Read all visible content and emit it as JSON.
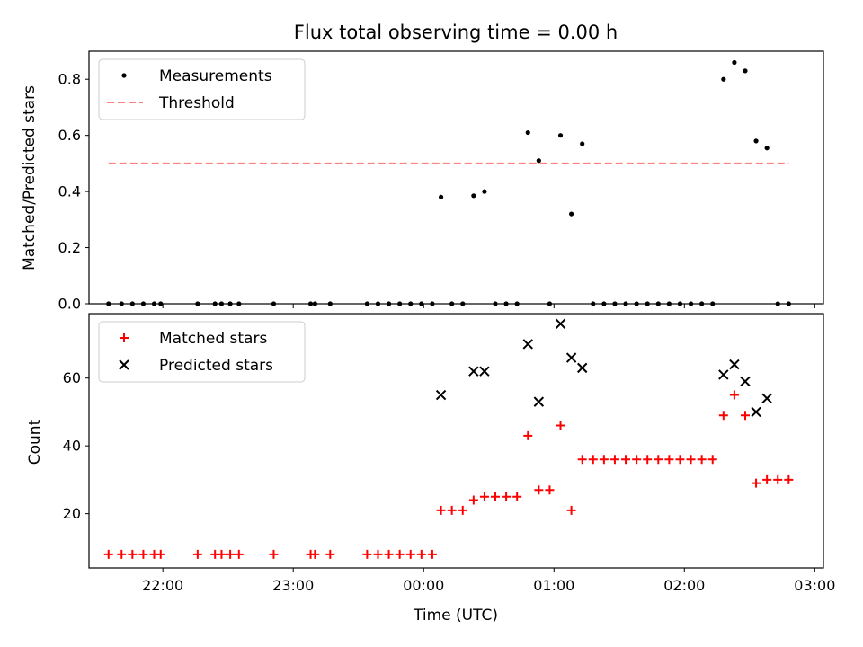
{
  "chart_data": [
    {
      "type": "scatter",
      "title": "Flux total observing time = 0.00 h",
      "xlabel": "",
      "ylabel": "Matched/Predicted stars",
      "xlim": [
        "21:26",
        "03:04"
      ],
      "ylim": [
        0,
        0.9
      ],
      "yticks": [
        "0.0",
        "0.2",
        "0.4",
        "0.6",
        "0.8"
      ],
      "grid": false,
      "legend_position": "top-left",
      "series": [
        {
          "name": "Measurements",
          "marker": "dot",
          "color": "#000000",
          "points": [
            [
              "21:35",
              0
            ],
            [
              "21:41",
              0
            ],
            [
              "21:46",
              0
            ],
            [
              "21:51",
              0
            ],
            [
              "21:56",
              0
            ],
            [
              "21:59",
              0
            ],
            [
              "22:16",
              0
            ],
            [
              "22:24",
              0
            ],
            [
              "22:27",
              0
            ],
            [
              "22:31",
              0
            ],
            [
              "22:35",
              0
            ],
            [
              "22:51",
              0
            ],
            [
              "23:08",
              0
            ],
            [
              "23:10",
              0
            ],
            [
              "23:17",
              0
            ],
            [
              "23:34",
              0
            ],
            [
              "23:39",
              0
            ],
            [
              "23:44",
              0
            ],
            [
              "23:49",
              0
            ],
            [
              "23:54",
              0
            ],
            [
              "23:59",
              0
            ],
            [
              "00:04",
              0
            ],
            [
              "00:08",
              0.38
            ],
            [
              "00:13",
              0
            ],
            [
              "00:18",
              0
            ],
            [
              "00:23",
              0.385
            ],
            [
              "00:28",
              0.4
            ],
            [
              "00:33",
              0
            ],
            [
              "00:38",
              0
            ],
            [
              "00:43",
              0
            ],
            [
              "00:48",
              0.61
            ],
            [
              "00:53",
              0.51
            ],
            [
              "00:58",
              0
            ],
            [
              "01:03",
              0.6
            ],
            [
              "01:08",
              0.32
            ],
            [
              "01:13",
              0.57
            ],
            [
              "01:18",
              0
            ],
            [
              "01:23",
              0
            ],
            [
              "01:28",
              0
            ],
            [
              "01:33",
              0
            ],
            [
              "01:38",
              0
            ],
            [
              "01:43",
              0
            ],
            [
              "01:48",
              0
            ],
            [
              "01:53",
              0
            ],
            [
              "01:58",
              0
            ],
            [
              "02:03",
              0
            ],
            [
              "02:08",
              0
            ],
            [
              "02:13",
              0
            ],
            [
              "02:18",
              0.8
            ],
            [
              "02:23",
              0.86
            ],
            [
              "02:28",
              0.83
            ],
            [
              "02:33",
              0.58
            ],
            [
              "02:38",
              0.555
            ],
            [
              "02:43",
              0
            ],
            [
              "02:48",
              0
            ]
          ]
        },
        {
          "name": "Threshold",
          "marker": "dashed-line",
          "color": "#ff8080",
          "points": [
            [
              "21:35",
              0.5
            ],
            [
              "02:48",
              0.5
            ]
          ]
        }
      ]
    },
    {
      "type": "scatter",
      "title": "",
      "xlabel": "Time (UTC)",
      "ylabel": "Count",
      "xlim": [
        "21:26",
        "03:04"
      ],
      "ylim": [
        4,
        79
      ],
      "yticks": [
        "20",
        "40",
        "60"
      ],
      "xticks": [
        "22:00",
        "23:00",
        "00:00",
        "01:00",
        "02:00",
        "03:00"
      ],
      "grid": false,
      "legend_position": "top-left",
      "series": [
        {
          "name": "Matched stars",
          "marker": "plus",
          "color": "#ff0000",
          "points": [
            [
              "21:35",
              8
            ],
            [
              "21:41",
              8
            ],
            [
              "21:46",
              8
            ],
            [
              "21:51",
              8
            ],
            [
              "21:56",
              8
            ],
            [
              "21:59",
              8
            ],
            [
              "22:16",
              8
            ],
            [
              "22:24",
              8
            ],
            [
              "22:27",
              8
            ],
            [
              "22:31",
              8
            ],
            [
              "22:35",
              8
            ],
            [
              "22:51",
              8
            ],
            [
              "23:08",
              8
            ],
            [
              "23:10",
              8
            ],
            [
              "23:17",
              8
            ],
            [
              "23:34",
              8
            ],
            [
              "23:39",
              8
            ],
            [
              "23:44",
              8
            ],
            [
              "23:49",
              8
            ],
            [
              "23:54",
              8
            ],
            [
              "23:59",
              8
            ],
            [
              "00:04",
              8
            ],
            [
              "00:08",
              21
            ],
            [
              "00:13",
              21
            ],
            [
              "00:18",
              21
            ],
            [
              "00:23",
              24
            ],
            [
              "00:28",
              25
            ],
            [
              "00:33",
              25
            ],
            [
              "00:38",
              25
            ],
            [
              "00:43",
              25
            ],
            [
              "00:48",
              43
            ],
            [
              "00:53",
              27
            ],
            [
              "00:58",
              27
            ],
            [
              "01:03",
              46
            ],
            [
              "01:08",
              21
            ],
            [
              "01:13",
              36
            ],
            [
              "01:18",
              36
            ],
            [
              "01:23",
              36
            ],
            [
              "01:28",
              36
            ],
            [
              "01:33",
              36
            ],
            [
              "01:38",
              36
            ],
            [
              "01:43",
              36
            ],
            [
              "01:48",
              36
            ],
            [
              "01:53",
              36
            ],
            [
              "01:58",
              36
            ],
            [
              "02:03",
              36
            ],
            [
              "02:08",
              36
            ],
            [
              "02:13",
              36
            ],
            [
              "02:18",
              49
            ],
            [
              "02:23",
              55
            ],
            [
              "02:28",
              49
            ],
            [
              "02:33",
              29
            ],
            [
              "02:38",
              30
            ],
            [
              "02:43",
              30
            ],
            [
              "02:48",
              30
            ]
          ]
        },
        {
          "name": "Predicted stars",
          "marker": "x",
          "color": "#000000",
          "points": [
            [
              "00:08",
              55
            ],
            [
              "00:23",
              62
            ],
            [
              "00:28",
              62
            ],
            [
              "00:48",
              70
            ],
            [
              "00:53",
              53
            ],
            [
              "01:03",
              76
            ],
            [
              "01:08",
              66
            ],
            [
              "01:13",
              63
            ],
            [
              "02:18",
              61
            ],
            [
              "02:23",
              64
            ],
            [
              "02:28",
              59
            ],
            [
              "02:33",
              50
            ],
            [
              "02:38",
              54
            ]
          ]
        }
      ]
    }
  ]
}
